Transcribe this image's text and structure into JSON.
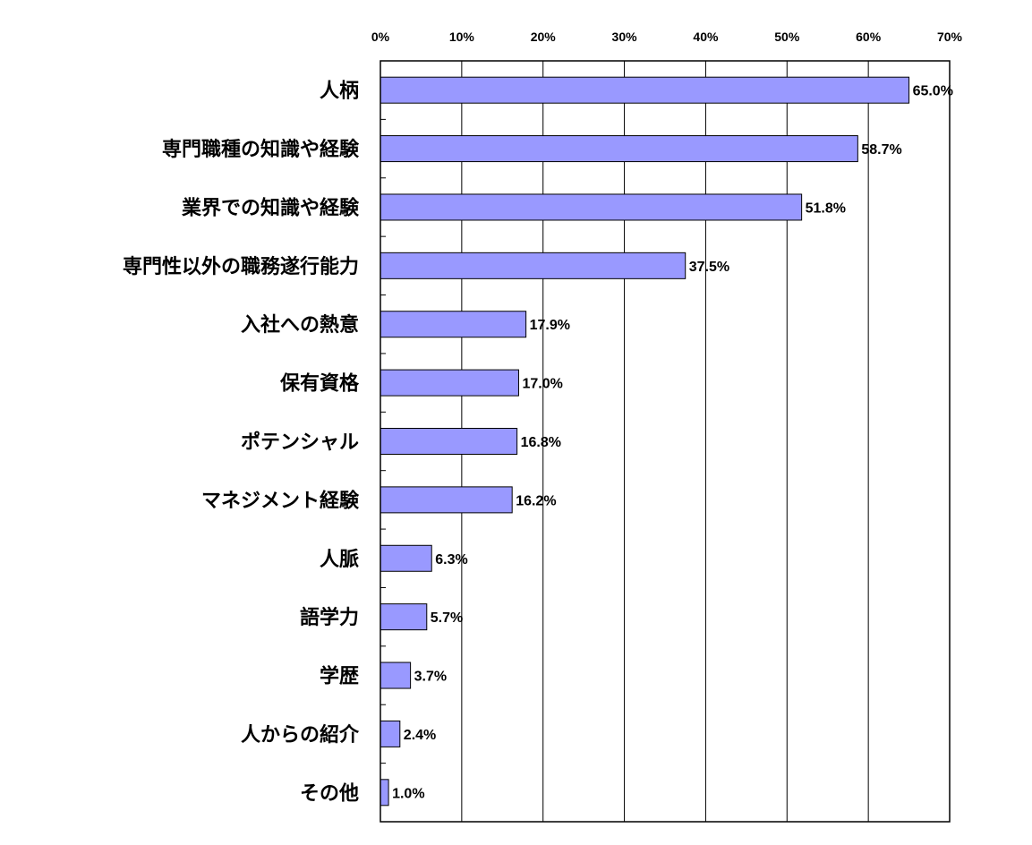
{
  "chart_data": {
    "type": "bar",
    "orientation": "horizontal",
    "categories": [
      "人柄",
      "専門職種の知識や経験",
      "業界での知識や経験",
      "専門性以外の職務遂行能力",
      "入社への熱意",
      "保有資格",
      "ポテンシャル",
      "マネジメント経験",
      "人脈",
      "語学力",
      "学歴",
      "人からの紹介",
      "その他"
    ],
    "values": [
      65.0,
      58.7,
      51.8,
      37.5,
      17.9,
      17.0,
      16.8,
      16.2,
      6.3,
      5.7,
      3.7,
      2.4,
      1.0
    ],
    "data_labels": [
      "65.0%",
      "58.7%",
      "51.8%",
      "37.5%",
      "17.9%",
      "17.0%",
      "16.8%",
      "16.2%",
      "6.3%",
      "5.7%",
      "3.7%",
      "2.4%",
      "1.0%"
    ],
    "x_ticks": [
      "0%",
      "10%",
      "20%",
      "30%",
      "40%",
      "50%",
      "60%",
      "70%"
    ],
    "xlim": [
      0,
      70
    ],
    "x_axis_position": "top",
    "grid": "vertical",
    "legend": "none",
    "title": "",
    "xlabel": "",
    "ylabel": "",
    "colors": {
      "bar_fill": "#9999ff",
      "bar_stroke": "#000000",
      "grid": "#000000",
      "background": "#ffffff"
    }
  }
}
